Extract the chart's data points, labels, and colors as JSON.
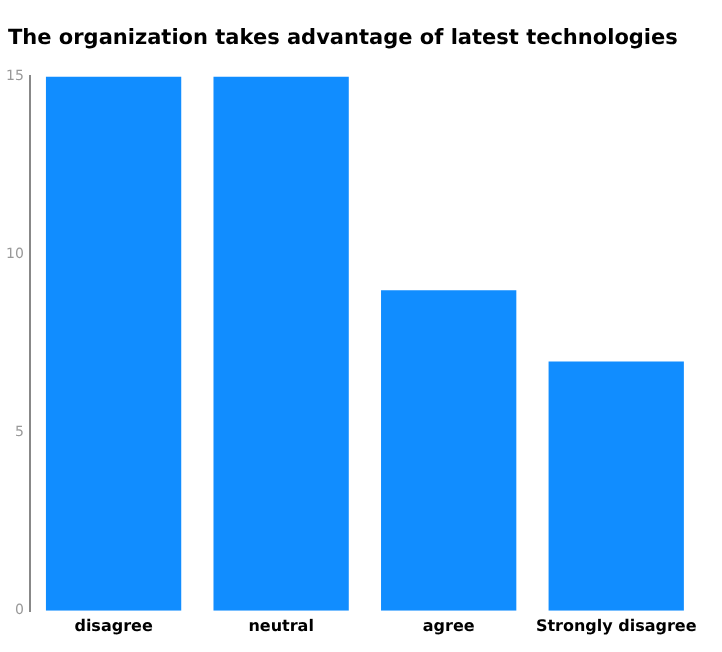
{
  "chart_data": {
    "type": "bar",
    "title": "The organization takes advantage of latest technologies",
    "categories": [
      "disagree",
      "neutral",
      "agree",
      "Strongly disagree"
    ],
    "values": [
      15,
      15,
      9,
      7
    ],
    "color": "#118dff",
    "ylim": [
      0,
      15
    ],
    "yticks": [
      0,
      5,
      10,
      15
    ],
    "grid": false
  }
}
